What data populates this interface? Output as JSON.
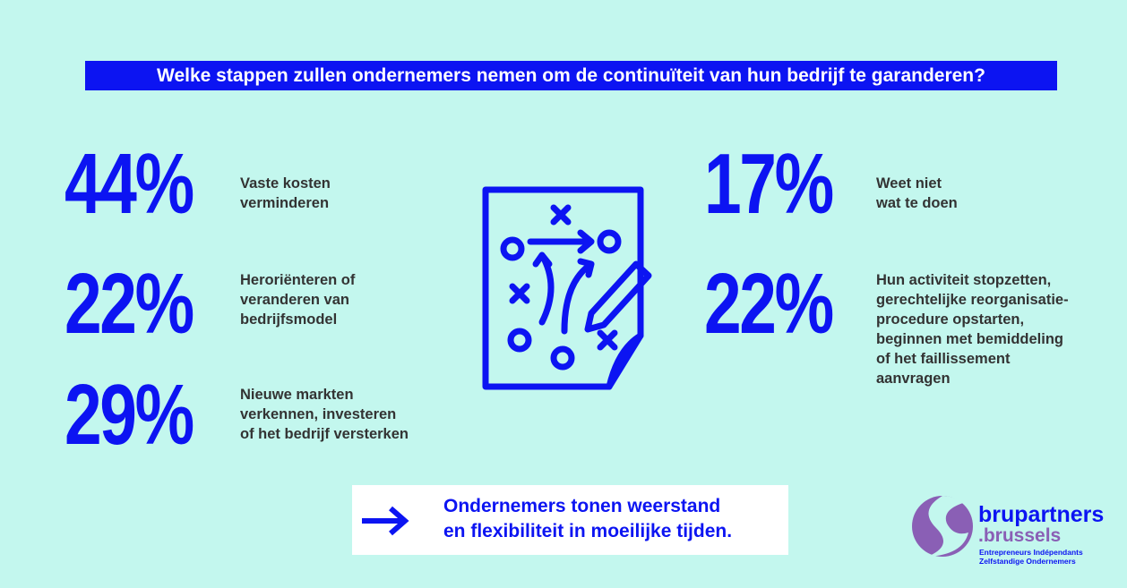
{
  "title": "Welke stappen zullen ondernemers nemen om de continuïteit van hun bedrijf te garanderen?",
  "left_stats": [
    {
      "value": "44%",
      "lines": [
        "Vaste kosten",
        "verminderen"
      ]
    },
    {
      "value": "22%",
      "lines": [
        "Heroriënteren of",
        "veranderen van",
        "bedrijfsmodel"
      ]
    },
    {
      "value": "29%",
      "lines": [
        "Nieuwe markten",
        "verkennen, investeren",
        "of het bedrijf versterken"
      ]
    }
  ],
  "right_stats": [
    {
      "value": "17%",
      "lines": [
        "Weet niet",
        "wat te doen"
      ]
    },
    {
      "value": "22%",
      "lines": [
        "Hun activiteit stopzetten,",
        "gerechtelijke reorganisatie-",
        "procedure opstarten,",
        "beginnen met bemiddeling",
        "of het faillissement",
        "aanvragen"
      ]
    }
  ],
  "conclusion": {
    "lines": [
      "Ondernemers tonen weerstand",
      "en flexibiliteit in moeilijke tijden."
    ]
  },
  "logo": {
    "name": "brupartners",
    "suffix": ".brussels",
    "tagline": [
      "Entrepreneurs Indépendants",
      "Zelfstandige Ondernemers"
    ]
  }
}
